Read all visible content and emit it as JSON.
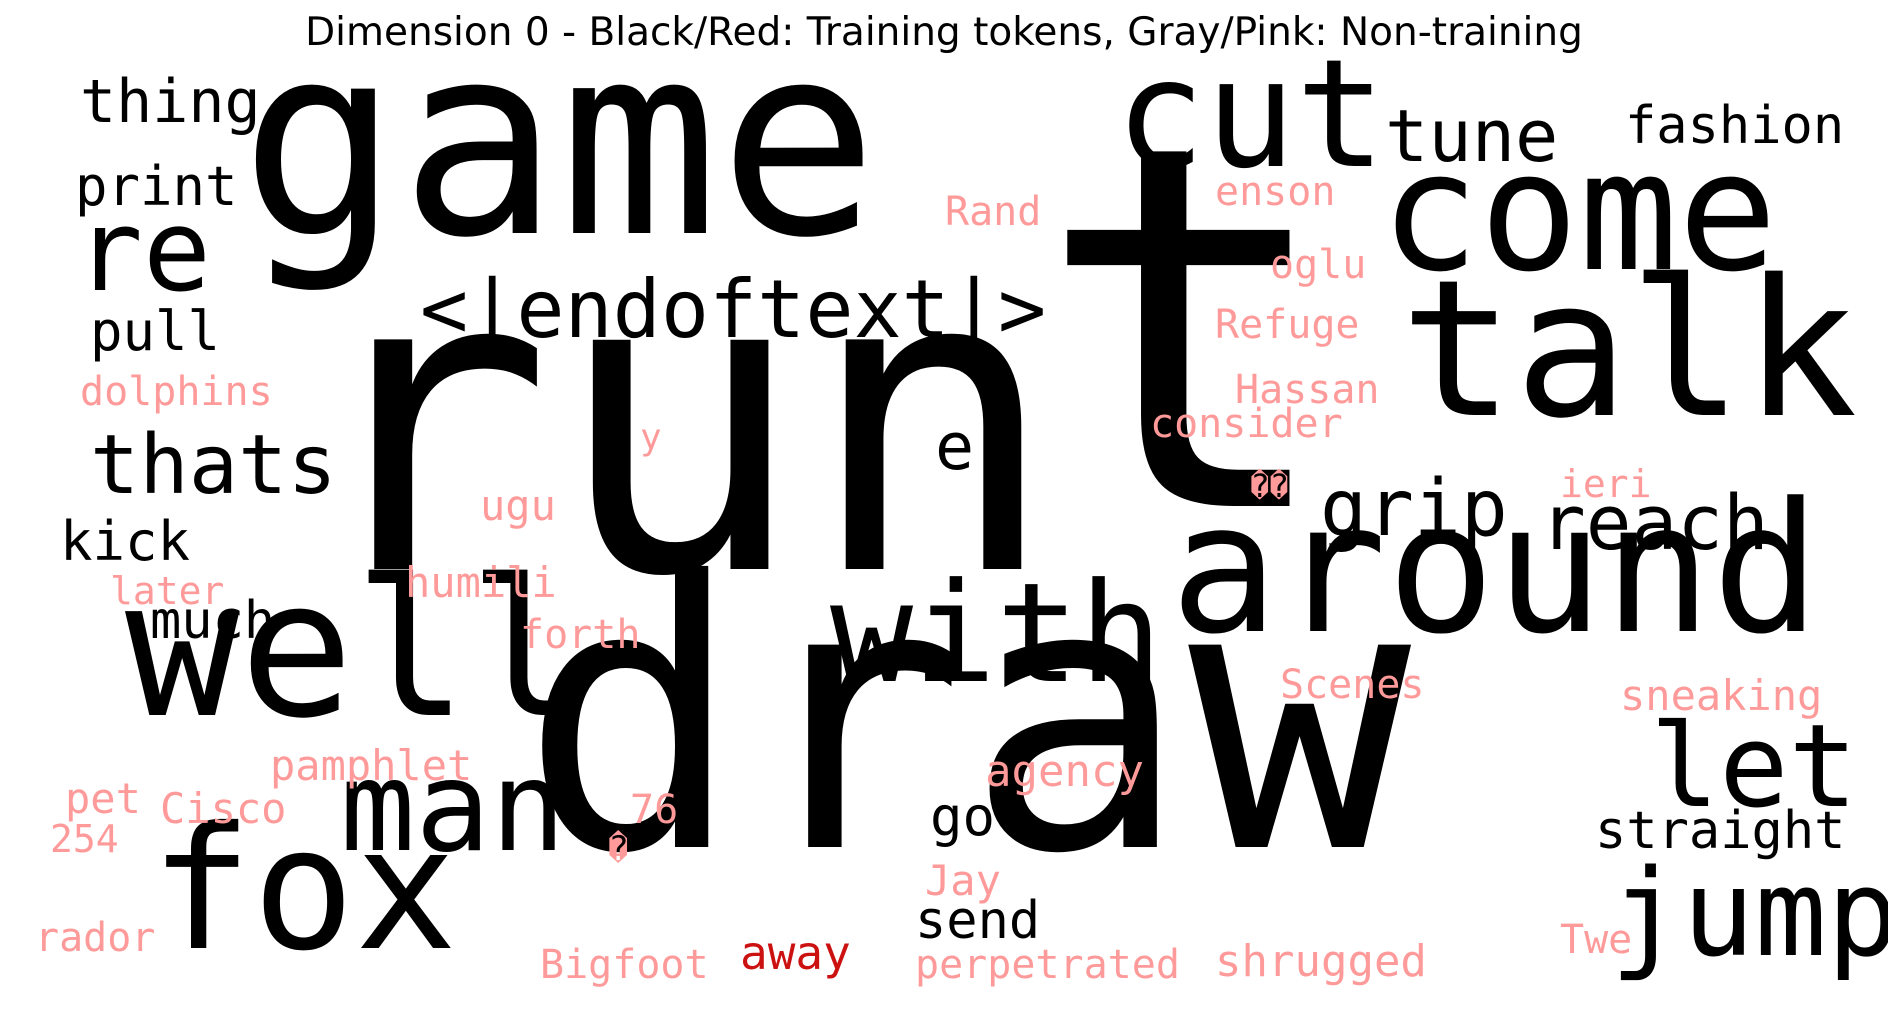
{
  "title": "Dimension 0 - Black/Red: Training tokens, Gray/Pink: Non-training",
  "colors": {
    "training": "#000000",
    "training_highlight": "#cc1111",
    "non_training": "#ff9a9a"
  },
  "words": [
    {
      "text": "run",
      "group": "training",
      "weight": 100
    },
    {
      "text": "draw",
      "group": "training",
      "weight": 100
    },
    {
      "text": "game",
      "group": "training",
      "weight": 85
    },
    {
      "text": "t",
      "group": "training",
      "weight": 100
    },
    {
      "text": "well",
      "group": "training",
      "weight": 55
    },
    {
      "text": "talk",
      "group": "training",
      "weight": 55
    },
    {
      "text": "around",
      "group": "training",
      "weight": 50
    },
    {
      "text": "come",
      "group": "training",
      "weight": 45
    },
    {
      "text": "fox",
      "group": "training",
      "weight": 45
    },
    {
      "text": "cut",
      "group": "training",
      "weight": 40
    },
    {
      "text": "with",
      "group": "training",
      "weight": 38
    },
    {
      "text": "jump",
      "group": "training",
      "weight": 35
    },
    {
      "text": "man",
      "group": "training",
      "weight": 33
    },
    {
      "text": "let",
      "group": "training",
      "weight": 33
    },
    {
      "text": "re",
      "group": "training",
      "weight": 30
    },
    {
      "text": "<|endoftext|>",
      "group": "training",
      "weight": 24
    },
    {
      "text": "thats",
      "group": "training",
      "weight": 22
    },
    {
      "text": "reach",
      "group": "training",
      "weight": 21
    },
    {
      "text": "grip",
      "group": "training",
      "weight": 21
    },
    {
      "text": "tune",
      "group": "training",
      "weight": 20
    },
    {
      "text": "e",
      "group": "training",
      "weight": 18
    },
    {
      "text": "thing",
      "group": "training",
      "weight": 15
    },
    {
      "text": "fashion",
      "group": "training",
      "weight": 14
    },
    {
      "text": "print",
      "group": "training",
      "weight": 14
    },
    {
      "text": "pull",
      "group": "training",
      "weight": 14
    },
    {
      "text": "kick",
      "group": "training",
      "weight": 14
    },
    {
      "text": "much",
      "group": "training",
      "weight": 13
    },
    {
      "text": "straight",
      "group": "training",
      "weight": 13
    },
    {
      "text": "go",
      "group": "training",
      "weight": 13
    },
    {
      "text": "send",
      "group": "training",
      "weight": 13
    },
    {
      "text": "away",
      "group": "training_highlight",
      "weight": 13
    },
    {
      "text": "enson",
      "group": "non_training",
      "weight": 8
    },
    {
      "text": "Rand",
      "group": "non_training",
      "weight": 8
    },
    {
      "text": "oglu",
      "group": "non_training",
      "weight": 8
    },
    {
      "text": "Refuge",
      "group": "non_training",
      "weight": 8
    },
    {
      "text": "Hassan",
      "group": "non_training",
      "weight": 8
    },
    {
      "text": "consider",
      "group": "non_training",
      "weight": 8
    },
    {
      "text": "dolphins",
      "group": "non_training",
      "weight": 8
    },
    {
      "text": "y",
      "group": "non_training",
      "weight": 6
    },
    {
      "text": "��",
      "group": "non_training",
      "weight": 6
    },
    {
      "text": "ieri",
      "group": "non_training",
      "weight": 7
    },
    {
      "text": "ugu",
      "group": "non_training",
      "weight": 8
    },
    {
      "text": "later",
      "group": "non_training",
      "weight": 7
    },
    {
      "text": "humili",
      "group": "non_training",
      "weight": 8
    },
    {
      "text": "forth",
      "group": "non_training",
      "weight": 7
    },
    {
      "text": "Scenes",
      "group": "non_training",
      "weight": 8
    },
    {
      "text": "sneaking",
      "group": "non_training",
      "weight": 8
    },
    {
      "text": "pamphlet",
      "group": "non_training",
      "weight": 8
    },
    {
      "text": "agency",
      "group": "non_training",
      "weight": 9
    },
    {
      "text": "pet",
      "group": "non_training",
      "weight": 8
    },
    {
      "text": "Cisco",
      "group": "non_training",
      "weight": 8
    },
    {
      "text": "76",
      "group": "non_training",
      "weight": 8
    },
    {
      "text": "254",
      "group": "non_training",
      "weight": 7
    },
    {
      "text": "�",
      "group": "non_training",
      "weight": 6
    },
    {
      "text": "Jay",
      "group": "non_training",
      "weight": 8
    },
    {
      "text": "rador",
      "group": "non_training",
      "weight": 8
    },
    {
      "text": "Bigfoot",
      "group": "non_training",
      "weight": 8
    },
    {
      "text": "perpetrated",
      "group": "non_training",
      "weight": 8
    },
    {
      "text": "shrugged",
      "group": "non_training",
      "weight": 9
    },
    {
      "text": "Twe",
      "group": "non_training",
      "weight": 8
    }
  ]
}
